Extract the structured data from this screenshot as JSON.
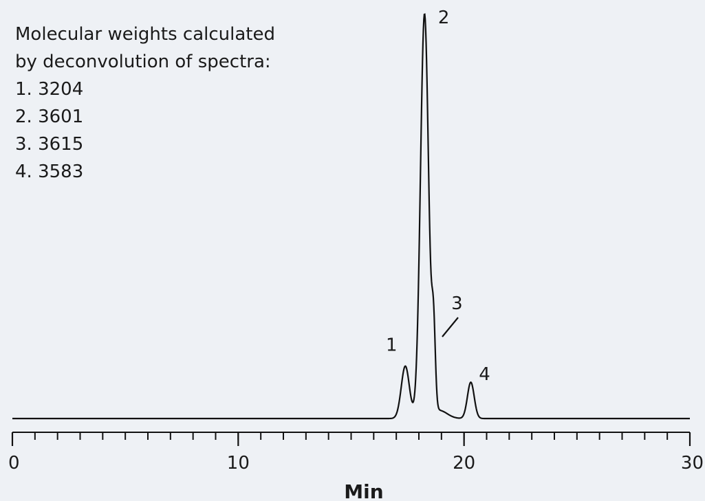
{
  "chart_data": {
    "type": "line",
    "title": "",
    "xlabel": "Min",
    "ylabel": "",
    "xlim": [
      0,
      30
    ],
    "ylim": [
      0,
      1
    ],
    "x_ticks": [
      "0",
      "10",
      "20",
      "30"
    ],
    "annotation_lines": [
      "Molecular weights calculated",
      "by deconvolution of spectra:",
      "1. 3204",
      "2. 3601",
      "3. 3615",
      "4. 3583"
    ],
    "peaks": [
      {
        "label": "1",
        "x": 17.4,
        "y": 0.13,
        "width": 0.18
      },
      {
        "label": "2",
        "x": 18.25,
        "y": 1.0,
        "width": 0.18
      },
      {
        "label": "3",
        "x": 18.65,
        "y": 0.19,
        "width": 0.08
      },
      {
        "label": "4",
        "x": 20.3,
        "y": 0.09,
        "width": 0.15
      }
    ],
    "series": [
      {
        "line_color": "#111111"
      }
    ],
    "grid": false
  }
}
